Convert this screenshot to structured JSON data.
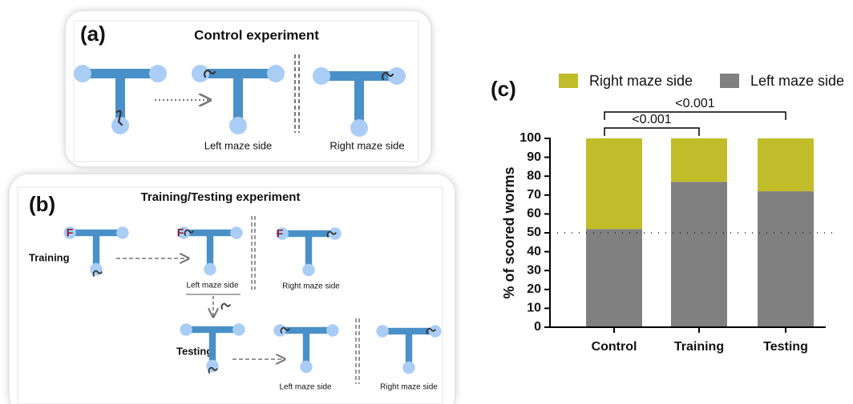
{
  "panel_a": {
    "label": "(a)",
    "title": "Control experiment",
    "captions": [
      "Left maze side",
      "Right maze side"
    ]
  },
  "panel_b": {
    "label": "(b)",
    "title": "Training/Testing experiment",
    "rows": [
      "Training",
      "Testing"
    ],
    "food_marker": "F",
    "captions": [
      "Left maze side",
      "Right maze side",
      "Left maze side",
      "Right maze side"
    ]
  },
  "chart_data": {
    "type": "stacked_bar",
    "panel_label": "(c)",
    "y_label": "% of scored worms",
    "categories": [
      "Control",
      "Training",
      "Testing"
    ],
    "series": [
      {
        "name": "Left maze side",
        "color": "#808080",
        "values": [
          52,
          77,
          72
        ]
      },
      {
        "name": "Right maze side",
        "color": "#c0bc2a",
        "values": [
          48,
          23,
          28
        ]
      }
    ],
    "ylim": [
      0,
      100
    ],
    "yticks": [
      0,
      10,
      20,
      30,
      40,
      50,
      60,
      70,
      80,
      90,
      100
    ],
    "reference_line": 50,
    "annotations": [
      "<0.001",
      "<0.001"
    ]
  }
}
